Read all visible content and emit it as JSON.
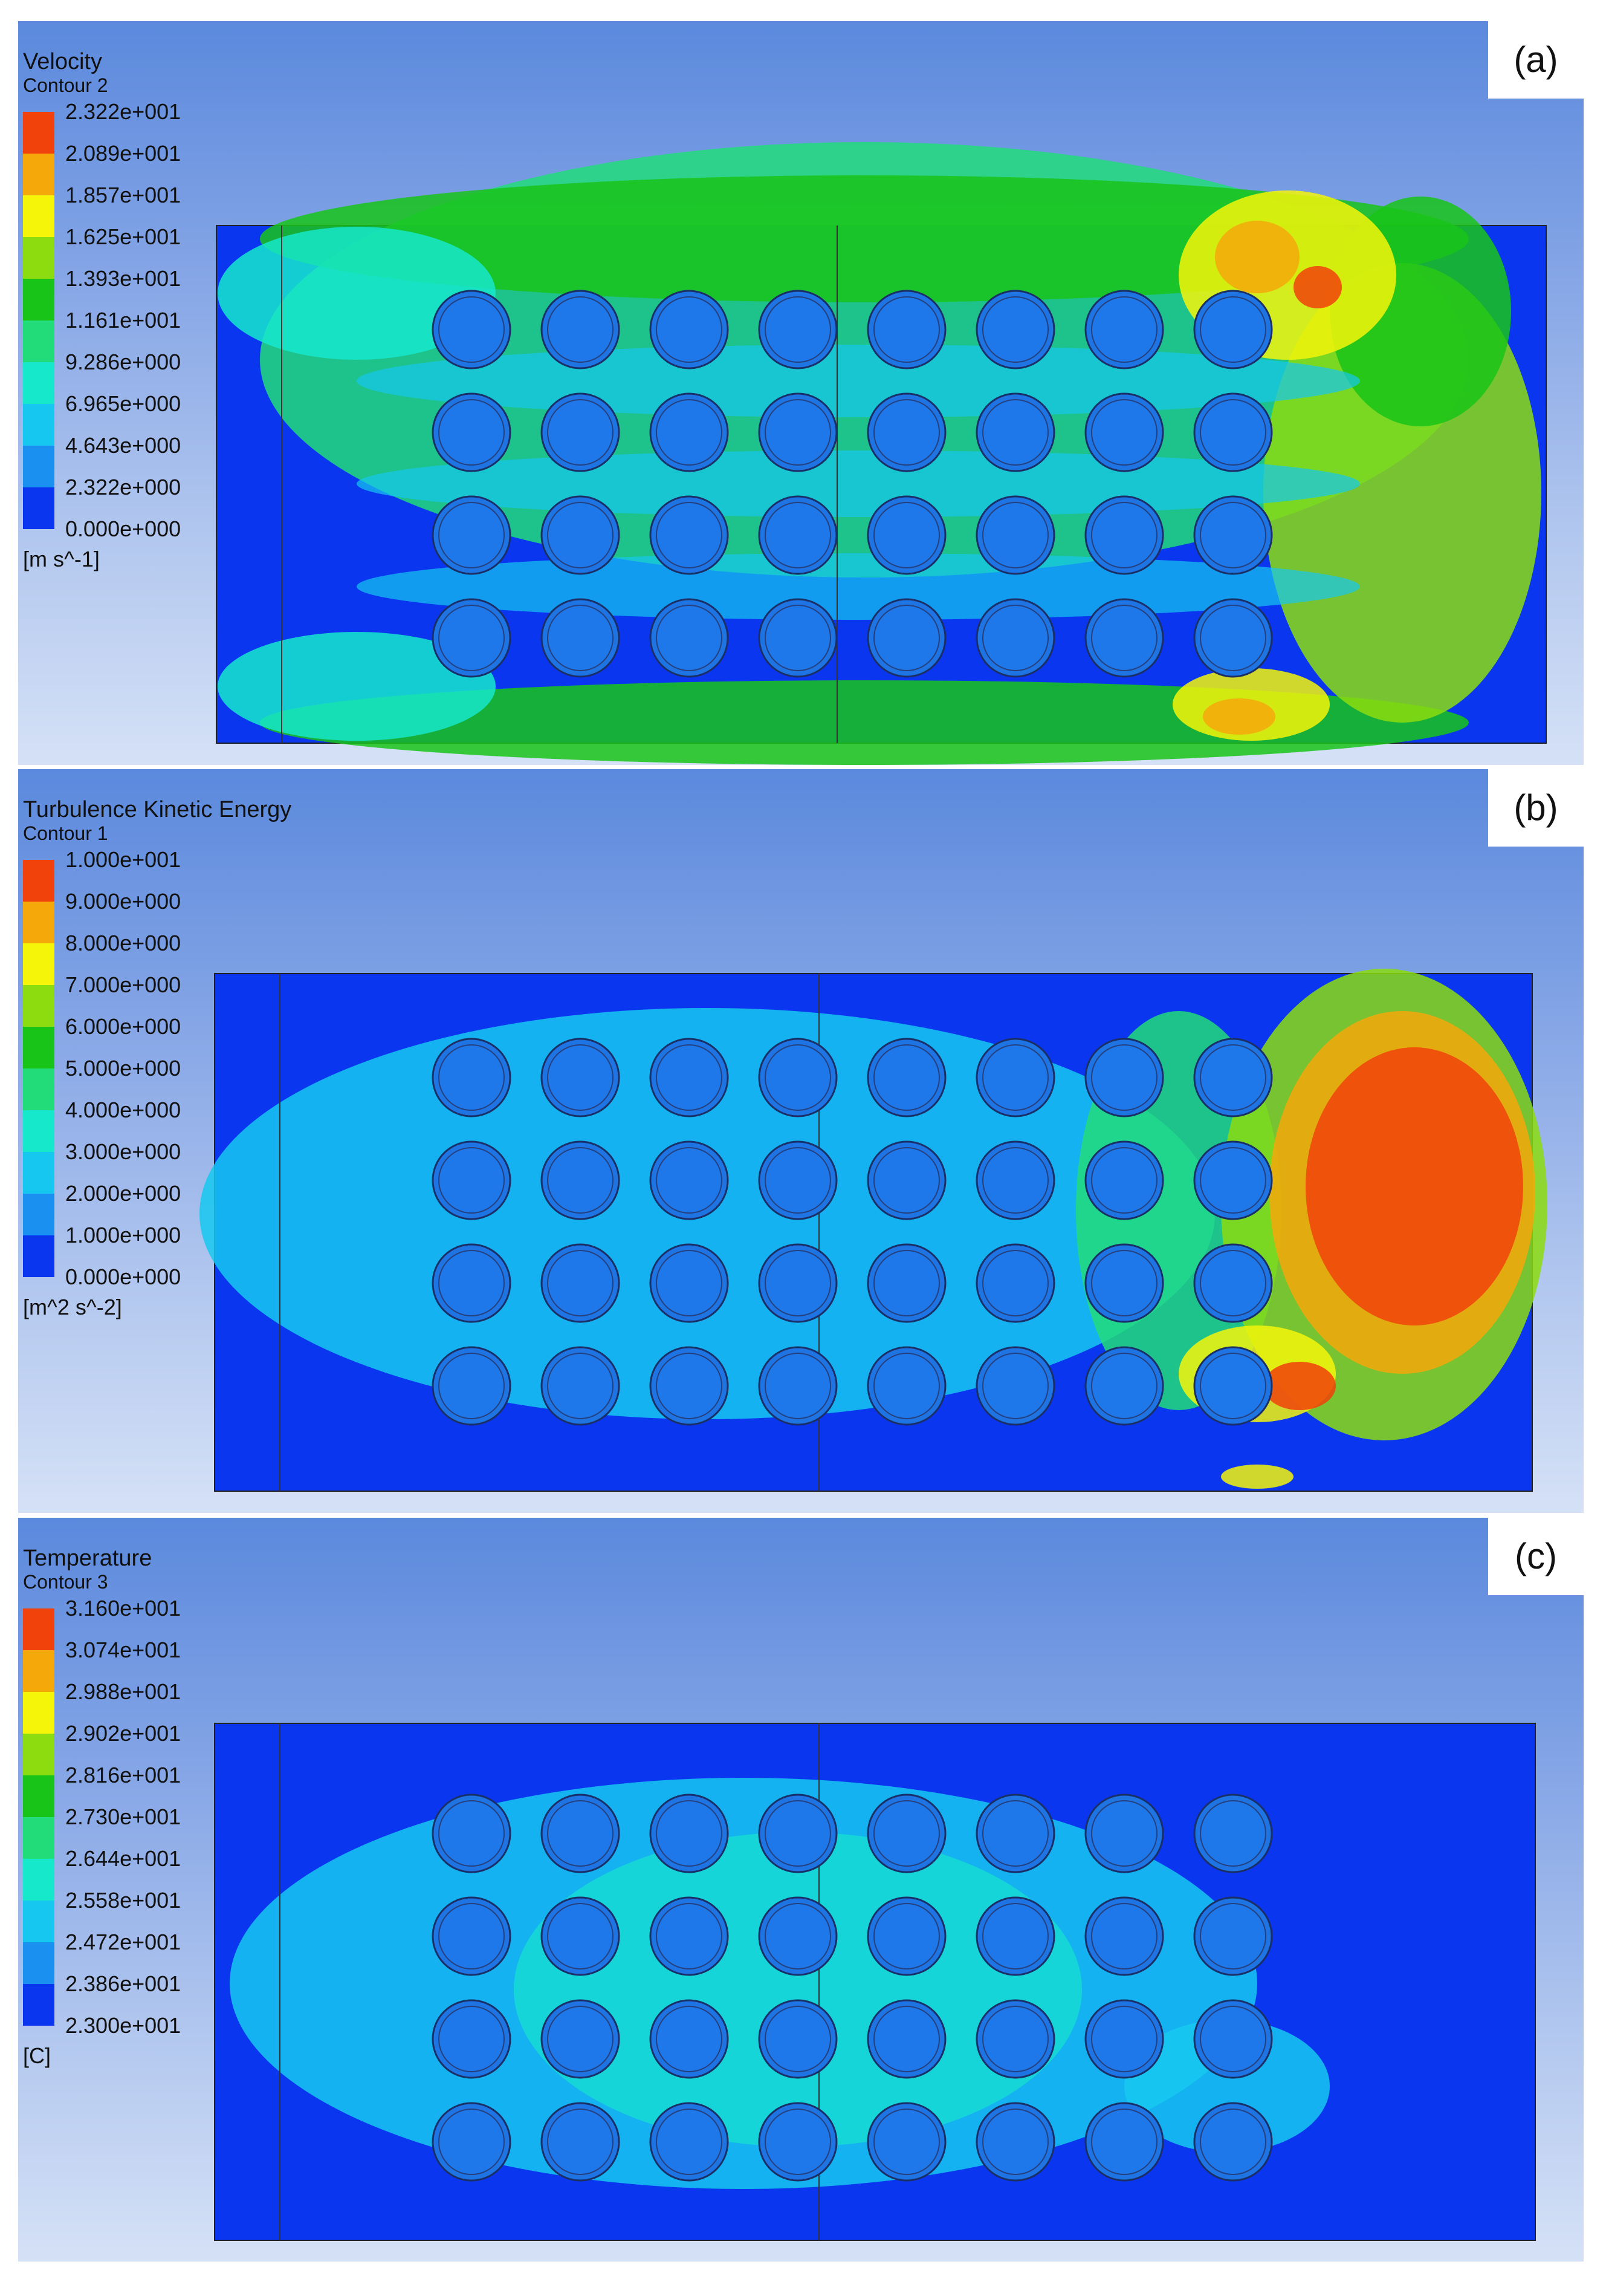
{
  "palette": [
    "#0a36f0",
    "#1a90f0",
    "#16c8f0",
    "#16e8cc",
    "#22dc7a",
    "#19c419",
    "#8cdc0f",
    "#f5f50a",
    "#f5a80a",
    "#f0420a"
  ],
  "panels": [
    {
      "id": "a",
      "label": "(a)",
      "title": "Velocity",
      "subtitle": "Contour 2",
      "unit": "[m s^-1]",
      "ticks": [
        "2.322e+001",
        "2.089e+001",
        "1.857e+001",
        "1.625e+001",
        "1.393e+001",
        "1.161e+001",
        "9.286e+000",
        "6.965e+000",
        "4.643e+000",
        "2.322e+000",
        "0.000e+000"
      ]
    },
    {
      "id": "b",
      "label": "(b)",
      "title": "Turbulence Kinetic Energy",
      "subtitle": "Contour 1",
      "unit": "[m^2 s^-2]",
      "ticks": [
        "1.000e+001",
        "9.000e+000",
        "8.000e+000",
        "7.000e+000",
        "6.000e+000",
        "5.000e+000",
        "4.000e+000",
        "3.000e+000",
        "2.000e+000",
        "1.000e+000",
        "0.000e+000"
      ]
    },
    {
      "id": "c",
      "label": "(c)",
      "title": "Temperature",
      "subtitle": "Contour 3",
      "unit": "[C]",
      "ticks": [
        "3.160e+001",
        "3.074e+001",
        "2.988e+001",
        "2.902e+001",
        "2.816e+001",
        "2.730e+001",
        "2.644e+001",
        "2.558e+001",
        "2.472e+001",
        "2.386e+001",
        "2.300e+001"
      ]
    }
  ]
}
